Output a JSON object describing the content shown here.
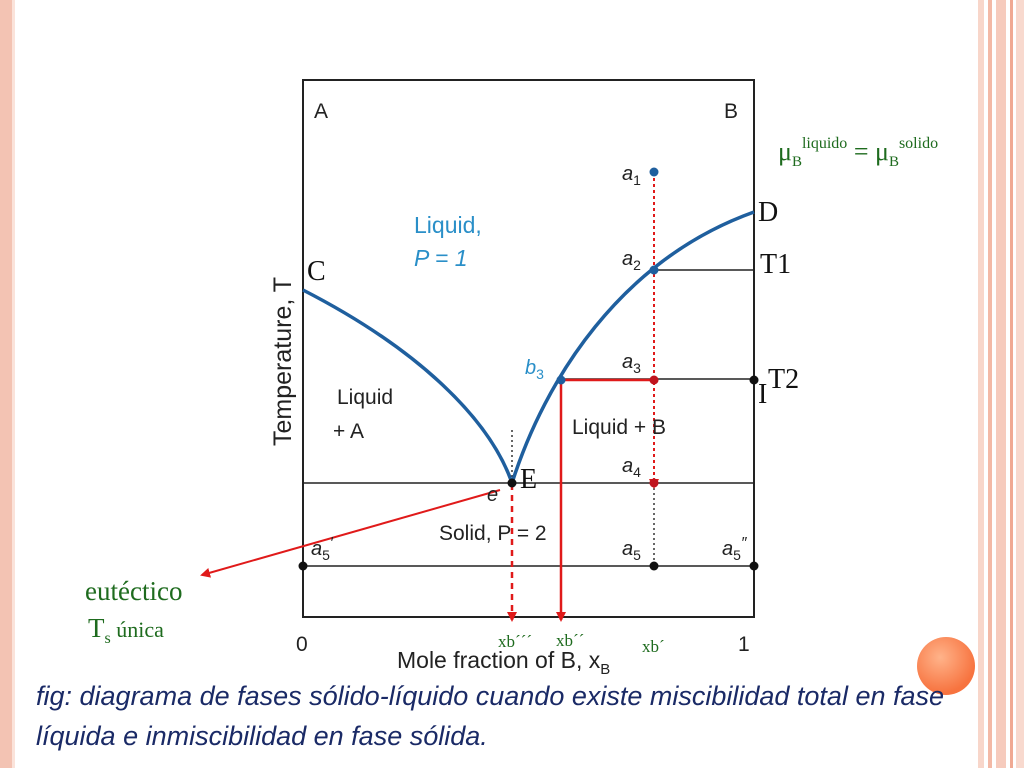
{
  "diagram": {
    "corner_a": "A",
    "corner_b": "B",
    "y_axis": "Temperature, T",
    "x_axis": "Mole fraction of B, x",
    "x_axis_sub": "B",
    "tick_0": "0",
    "tick_1": "1",
    "region_liquid_1": "Liquid,",
    "region_liquid_2": "P = 1",
    "region_liquid_a_1": "Liquid",
    "region_liquid_a_2": "+ A",
    "region_liquid_b": "Liquid + B",
    "region_solid": "Solid, P = 2",
    "point_a1": "a",
    "point_a1_sub": "1",
    "point_a2": "a",
    "point_a2_sub": "2",
    "point_a3": "a",
    "point_a3_sub": "3",
    "point_a4": "a",
    "point_a4_sub": "4",
    "point_a5": "a",
    "point_a5_sub": "5",
    "point_a5p": "a",
    "point_a5p_sub": "5",
    "point_a5pp": "a",
    "point_a5pp_sub": "5",
    "point_b3": "b",
    "point_b3_sub": "3",
    "point_e": "e"
  },
  "annotations": {
    "mu_lhs": "μ",
    "mu_lhs_sub": "B",
    "mu_lhs_sup": "liquido",
    "mu_eq": " = ",
    "mu_rhs": "μ",
    "mu_rhs_sub": "B",
    "mu_rhs_sup": "solido",
    "label_D": "D",
    "label_C": "C",
    "label_T1": "T1",
    "label_T2": "T2",
    "label_I": "I",
    "label_E": "E",
    "eutectic_1": "eutéctico",
    "eutectic_2": "T",
    "eutectic_2_sub": "s",
    "eutectic_2_rest": " única",
    "xb3": "xb´´´",
    "xb2": "xb´´",
    "xb1": "xb´"
  },
  "caption": "fig: diagrama de fases sólido-líquido cuando existe miscibilidad total en fase líquida e inmiscibilidad en fase sólida.",
  "colors": {
    "curve": "#1f5f9e",
    "label_blue": "#2a8fc8",
    "annotation_green": "#1e6b1e",
    "arrow_red": "#e01a1a",
    "caption": "#1a2a66"
  }
}
